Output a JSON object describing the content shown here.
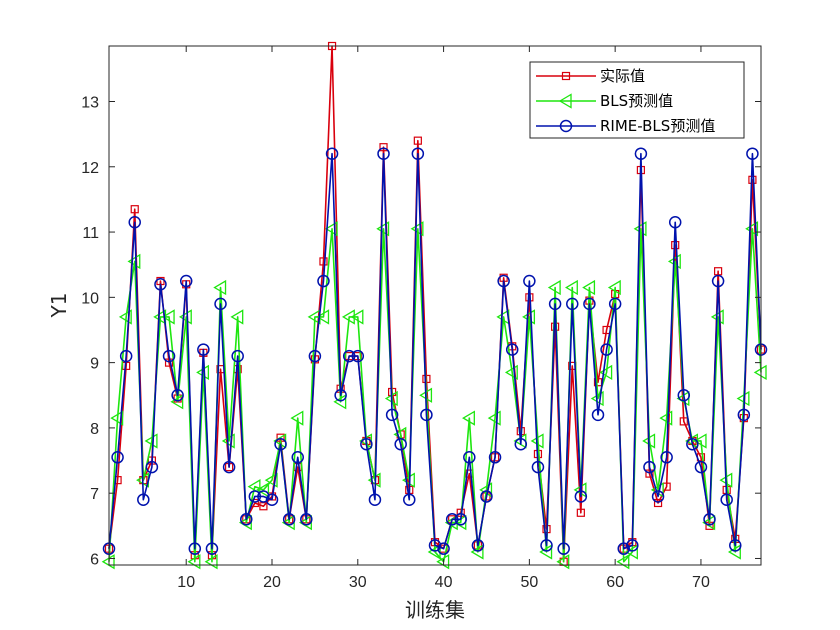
{
  "chart_data": {
    "type": "line",
    "xlabel": "训练集",
    "ylabel": "Y1",
    "xlim": [
      1,
      77
    ],
    "ylim": [
      5.9,
      13.85
    ],
    "xticks": [
      10,
      20,
      30,
      40,
      50,
      60,
      70
    ],
    "yticks": [
      6,
      7,
      8,
      9,
      10,
      11,
      12,
      13
    ],
    "grid": false,
    "legend_position": "top-right",
    "x": [
      1,
      2,
      3,
      4,
      5,
      6,
      7,
      8,
      9,
      10,
      11,
      12,
      13,
      14,
      15,
      16,
      17,
      18,
      19,
      20,
      21,
      22,
      23,
      24,
      25,
      26,
      27,
      28,
      29,
      30,
      31,
      32,
      33,
      34,
      35,
      36,
      37,
      38,
      39,
      40,
      41,
      42,
      43,
      44,
      45,
      46,
      47,
      48,
      49,
      50,
      51,
      52,
      53,
      54,
      55,
      56,
      57,
      58,
      59,
      60,
      61,
      62,
      63,
      64,
      65,
      66,
      67,
      68,
      69,
      70,
      71,
      72,
      73,
      74,
      75,
      76,
      77
    ],
    "series": [
      {
        "name": "实际值",
        "color": "#d9000d",
        "marker": "square",
        "values": [
          6.15,
          7.2,
          8.95,
          11.35,
          7.2,
          7.5,
          10.25,
          9.0,
          8.45,
          10.2,
          6.05,
          9.15,
          6.05,
          8.9,
          7.4,
          8.9,
          6.6,
          6.85,
          6.8,
          6.95,
          7.85,
          6.6,
          7.4,
          6.6,
          9.05,
          10.55,
          13.85,
          8.6,
          9.1,
          9.1,
          7.8,
          7.2,
          12.3,
          8.55,
          7.9,
          7.05,
          12.4,
          8.75,
          6.25,
          6.15,
          6.6,
          6.7,
          7.3,
          6.2,
          6.95,
          7.55,
          10.3,
          9.25,
          7.95,
          10.0,
          7.6,
          6.45,
          9.55,
          5.95,
          8.95,
          6.7,
          9.95,
          8.7,
          9.5,
          10.05,
          6.15,
          6.25,
          11.95,
          7.3,
          6.85,
          7.1,
          10.8,
          8.1,
          7.8,
          7.55,
          6.5,
          10.4,
          7.05,
          6.3,
          8.15,
          11.8,
          9.2
        ]
      },
      {
        "name": "BLS预测值",
        "color": "#1ee60f",
        "marker": "triangle-left",
        "values": [
          5.95,
          8.15,
          9.7,
          10.55,
          7.2,
          7.8,
          9.7,
          9.7,
          8.4,
          9.7,
          5.95,
          8.85,
          5.95,
          10.15,
          7.8,
          9.7,
          6.55,
          7.1,
          7.05,
          7.2,
          7.8,
          6.55,
          8.15,
          6.55,
          9.7,
          9.7,
          11.05,
          8.4,
          9.7,
          9.7,
          7.8,
          7.2,
          11.05,
          8.45,
          7.9,
          7.2,
          11.05,
          8.5,
          6.1,
          5.95,
          6.55,
          6.55,
          8.15,
          6.1,
          7.05,
          8.15,
          9.7,
          8.85,
          7.8,
          9.7,
          7.8,
          6.1,
          10.15,
          5.95,
          10.15,
          7.05,
          10.15,
          8.45,
          8.85,
          10.15,
          5.95,
          6.1,
          11.05,
          7.8,
          7.05,
          8.15,
          10.55,
          8.45,
          7.8,
          7.8,
          6.55,
          9.7,
          7.2,
          6.1,
          8.45,
          11.05,
          8.85
        ]
      },
      {
        "name": "RIME-BLS预测值",
        "color": "#0012ad",
        "marker": "circle",
        "values": [
          6.15,
          7.55,
          9.1,
          11.15,
          6.9,
          7.4,
          10.2,
          9.1,
          8.5,
          10.25,
          6.15,
          9.2,
          6.15,
          9.9,
          7.4,
          9.1,
          6.6,
          6.95,
          6.95,
          6.9,
          7.75,
          6.6,
          7.55,
          6.6,
          9.1,
          10.25,
          12.2,
          8.5,
          9.1,
          9.1,
          7.75,
          6.9,
          12.2,
          8.2,
          7.75,
          6.9,
          12.2,
          8.2,
          6.2,
          6.15,
          6.6,
          6.6,
          7.55,
          6.2,
          6.95,
          7.55,
          10.25,
          9.2,
          7.75,
          10.25,
          7.4,
          6.2,
          9.9,
          6.15,
          9.9,
          6.95,
          9.9,
          8.2,
          9.2,
          9.9,
          6.15,
          6.2,
          12.2,
          7.4,
          6.95,
          7.55,
          11.15,
          8.5,
          7.75,
          7.4,
          6.6,
          10.25,
          6.9,
          6.2,
          8.2,
          12.2,
          9.2
        ]
      }
    ]
  }
}
